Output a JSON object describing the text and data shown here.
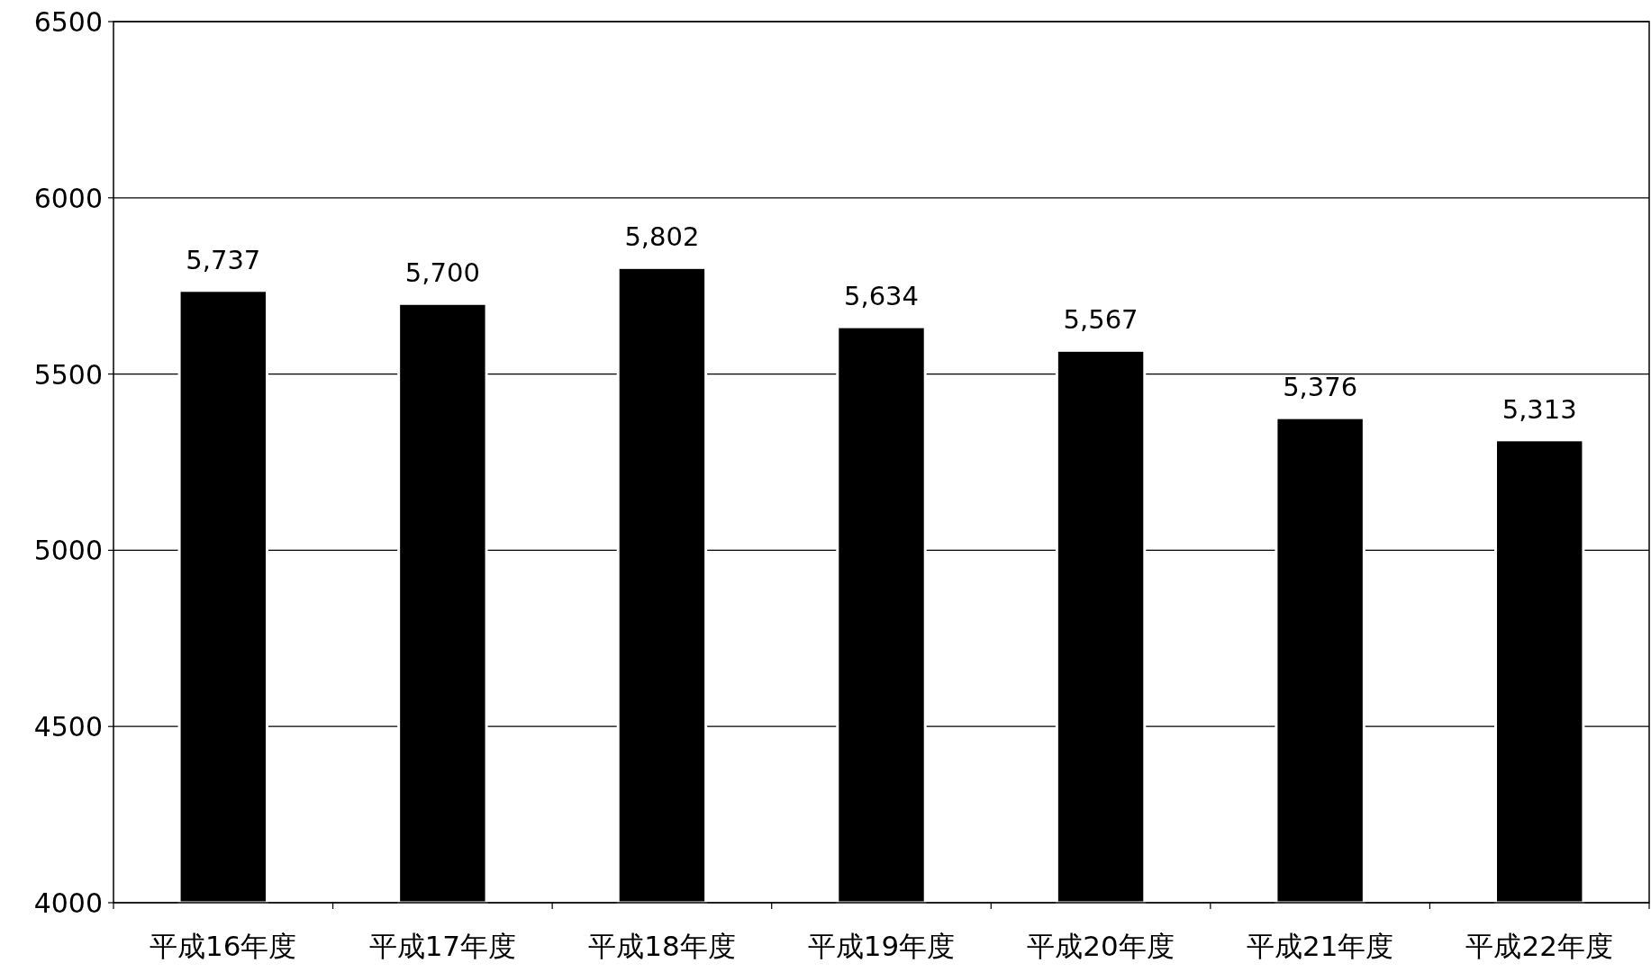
{
  "chart_data": {
    "type": "bar",
    "categories": [
      "平成16年度",
      "平成17年度",
      "平成18年度",
      "平成19年度",
      "平成20年度",
      "平成21年度",
      "平成22年度"
    ],
    "values": [
      5737,
      5700,
      5802,
      5634,
      5567,
      5376,
      5313
    ],
    "value_labels": [
      "5,737",
      "5,700",
      "5,802",
      "5,634",
      "5,567",
      "5,376",
      "5,313"
    ],
    "color": "#000000",
    "ylim": [
      4000,
      6500
    ],
    "yticks": [
      4000,
      4500,
      5000,
      5500,
      6000,
      6500
    ],
    "grid": "y"
  }
}
